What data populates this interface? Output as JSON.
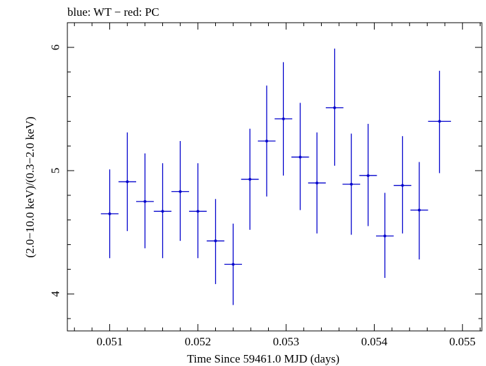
{
  "chart_data": {
    "type": "scatter",
    "title": "blue: WT − red: PC",
    "xlabel": "Time Since 59461.0 MJD (days)",
    "ylabel": "(2.0−10.0 keV)/(0.3−2.0 keV)",
    "xlim": [
      0.05052,
      0.05522
    ],
    "ylim": [
      3.7,
      6.2
    ],
    "xticks": [
      0.051,
      0.052,
      0.053,
      0.054,
      0.055
    ],
    "xtick_labels": [
      "0.051",
      "0.052",
      "0.053",
      "0.054",
      "0.055"
    ],
    "yticks": [
      4,
      5,
      6
    ],
    "ytick_labels": [
      "4",
      "5",
      "6"
    ],
    "grid": false,
    "series": [
      {
        "color": "#0000cc",
        "points": [
          {
            "x": 0.051,
            "xerr": 0.0001,
            "y": 4.65,
            "ylo": 4.29,
            "yhi": 5.01
          },
          {
            "x": 0.0512,
            "xerr": 0.0001,
            "y": 4.91,
            "ylo": 4.51,
            "yhi": 5.31
          },
          {
            "x": 0.0514,
            "xerr": 0.0001,
            "y": 4.75,
            "ylo": 4.37,
            "yhi": 5.14
          },
          {
            "x": 0.0516,
            "xerr": 0.0001,
            "y": 4.67,
            "ylo": 4.29,
            "yhi": 5.06
          },
          {
            "x": 0.0518,
            "xerr": 0.0001,
            "y": 4.83,
            "ylo": 4.43,
            "yhi": 5.24
          },
          {
            "x": 0.052,
            "xerr": 0.0001,
            "y": 4.67,
            "ylo": 4.29,
            "yhi": 5.06
          },
          {
            "x": 0.0522,
            "xerr": 0.0001,
            "y": 4.43,
            "ylo": 4.08,
            "yhi": 4.77
          },
          {
            "x": 0.0524,
            "xerr": 0.0001,
            "y": 4.24,
            "ylo": 3.91,
            "yhi": 4.57
          },
          {
            "x": 0.05259,
            "xerr": 0.0001,
            "y": 4.93,
            "ylo": 4.52,
            "yhi": 5.34
          },
          {
            "x": 0.05278,
            "xerr": 0.0001,
            "y": 5.24,
            "ylo": 4.79,
            "yhi": 5.69
          },
          {
            "x": 0.05297,
            "xerr": 0.0001,
            "y": 5.42,
            "ylo": 4.96,
            "yhi": 5.88
          },
          {
            "x": 0.05316,
            "xerr": 0.0001,
            "y": 5.11,
            "ylo": 4.68,
            "yhi": 5.55
          },
          {
            "x": 0.05335,
            "xerr": 0.0001,
            "y": 4.9,
            "ylo": 4.49,
            "yhi": 5.31
          },
          {
            "x": 0.05355,
            "xerr": 0.0001,
            "y": 5.51,
            "ylo": 5.04,
            "yhi": 5.99
          },
          {
            "x": 0.05374,
            "xerr": 0.0001,
            "y": 4.89,
            "ylo": 4.48,
            "yhi": 5.3
          },
          {
            "x": 0.05393,
            "xerr": 0.0001,
            "y": 4.96,
            "ylo": 4.55,
            "yhi": 5.38
          },
          {
            "x": 0.05412,
            "xerr": 0.0001,
            "y": 4.47,
            "ylo": 4.13,
            "yhi": 4.82
          },
          {
            "x": 0.05432,
            "xerr": 0.0001,
            "y": 4.88,
            "ylo": 4.49,
            "yhi": 5.28
          },
          {
            "x": 0.05451,
            "xerr": 0.0001,
            "y": 4.68,
            "ylo": 4.28,
            "yhi": 5.07
          },
          {
            "x": 0.05474,
            "xerr": 0.00013,
            "y": 5.4,
            "ylo": 4.98,
            "yhi": 5.81
          }
        ]
      }
    ]
  }
}
